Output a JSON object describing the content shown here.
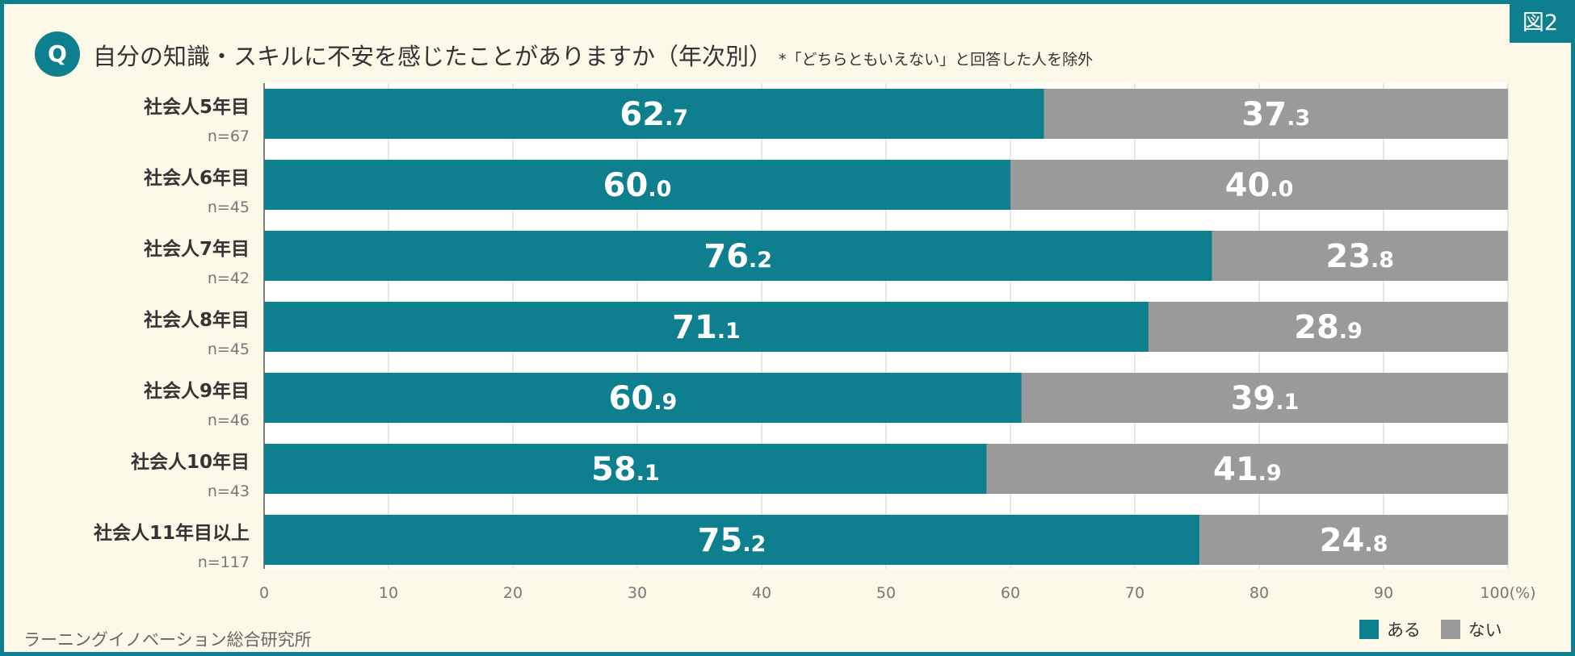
{
  "figure_badge": "図2",
  "question_mark": "Q",
  "title": "自分の知識・スキルに不安を感じたことがありますか（年次別）",
  "title_note": "*「どちらともいえない」と回答した人を除外",
  "source": "ラーニングイノベーション総合研究所",
  "colors": {
    "aru": "#0e7f8e",
    "nai": "#9a9a9a",
    "frame": "#0e7f8e",
    "background": "#fdf9e8"
  },
  "chart_data": {
    "type": "bar",
    "orientation": "horizontal",
    "stacked": true,
    "categories": [
      "社会人5年目",
      "社会人6年目",
      "社会人7年目",
      "社会人8年目",
      "社会人9年目",
      "社会人10年目",
      "社会人11年目以上"
    ],
    "sample_sizes": [
      "n=67",
      "n=45",
      "n=42",
      "n=45",
      "n=46",
      "n=43",
      "n=117"
    ],
    "series": [
      {
        "name": "ある",
        "values": [
          62.7,
          60.0,
          76.2,
          71.1,
          60.9,
          58.1,
          75.2
        ]
      },
      {
        "name": "ない",
        "values": [
          37.3,
          40.0,
          23.8,
          28.9,
          39.1,
          41.9,
          24.8
        ]
      }
    ],
    "x_ticks": [
      "0",
      "10",
      "20",
      "30",
      "40",
      "50",
      "60",
      "70",
      "80",
      "90",
      "100(%)"
    ],
    "xlim": [
      0,
      100
    ],
    "grid": true,
    "legend_position": "bottom-right"
  }
}
